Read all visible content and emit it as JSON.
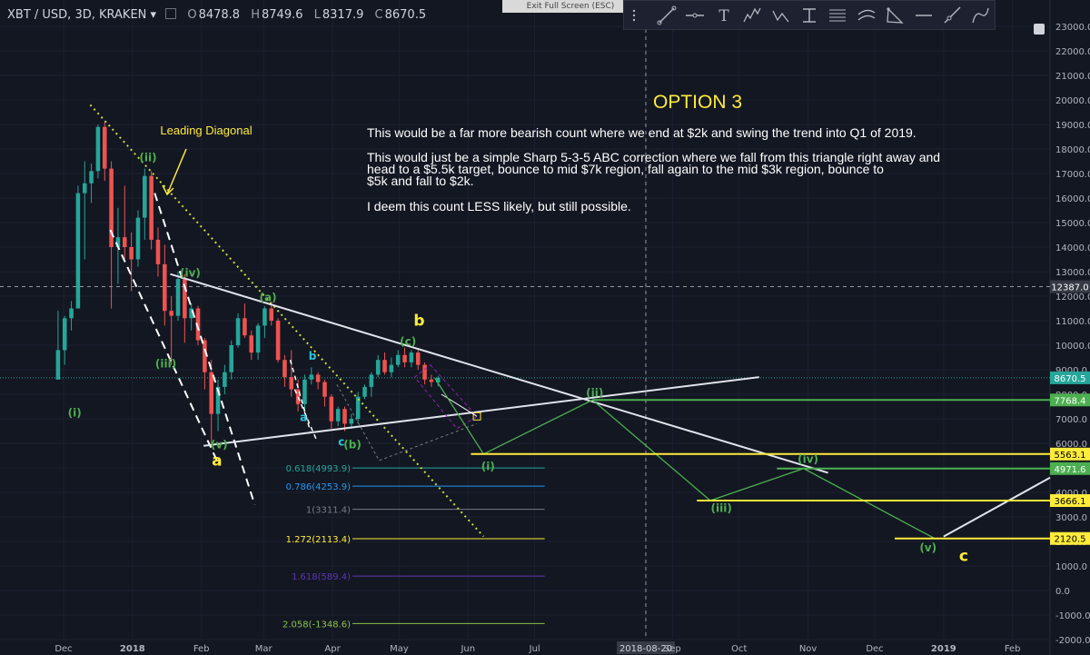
{
  "header": {
    "symbol": "XBT / USD, 3D, KRAKEN",
    "open_label": "O",
    "open": "8478.8",
    "high_label": "H",
    "high": "8749.6",
    "low_label": "L",
    "low": "8317.9",
    "close_label": "C",
    "close": "8670.5"
  },
  "exit_fullscreen": "Exit Full Screen (ESC)",
  "toolbar_icons": [
    "pointer-tool-icon",
    "trendline-icon",
    "horizontal-line-icon",
    "text-icon",
    "elliott-wave-12345-icon",
    "elliott-wave-abc-icon",
    "fib-retracement-icon",
    "fib-extension-icon",
    "channel-icon",
    "triangle-icon",
    "horizontal-segment-icon",
    "ray-icon",
    "path-icon"
  ],
  "annotation": {
    "title": "OPTION 3",
    "paragraph1": [
      "This would be a far more bearish count where we end at $2k and swing the trend into Q1 of 2019."
    ],
    "paragraph2": [
      "This would just be a simple Sharp 5-3-5 ABC correction where we fall from this triangle right away and",
      "head to a $5.5k target, bounce to mid $7k region, fall again to the mid $3k region, bounce to",
      "$5k and fall to $2k."
    ],
    "paragraph3": [
      "I deem this count LESS likely, but still possible."
    ]
  },
  "chart_data": {
    "type": "candlestick",
    "title": "XBT / USD, 3D, KRAKEN",
    "y_axis_ticks": [
      "23000.0",
      "22000.0",
      "21000.0",
      "20000.0",
      "19000.0",
      "18000.0",
      "17000.0",
      "16000.0",
      "15000.0",
      "14000.0",
      "13000.0",
      "12000.0",
      "11000.0",
      "10000.0",
      "9000.0",
      "8000.0",
      "7000.0",
      "6000.0",
      "5000.0",
      "4000.0",
      "3000.0",
      "2000.0",
      "1000.0",
      "0.0",
      "-1000.0",
      "-2000.0"
    ],
    "ylim": [
      -2000,
      23000
    ],
    "x_axis_ticks": [
      "Dec",
      "2018",
      "Feb",
      "Mar",
      "Apr",
      "May",
      "Jun",
      "Jul",
      "2018-08-20",
      "Sep",
      "Oct",
      "Nov",
      "Dec",
      "2019",
      "Feb"
    ],
    "crosshair_x_label": "2018-08-20",
    "crosshair_price": "12387.0",
    "price_labels": [
      {
        "text": "8670.5",
        "color": "#26a69a"
      },
      {
        "text": "7768.4",
        "color": "#4caf50"
      },
      {
        "text": "5563.1",
        "color": "#ffeb3b"
      },
      {
        "text": "4971.6",
        "color": "#4caf50"
      },
      {
        "text": "3666.1",
        "color": "#ffeb3b"
      },
      {
        "text": "2120.5",
        "color": "#ffeb3b"
      }
    ],
    "candles": [
      {
        "t": "2017-11-27",
        "o": 8600,
        "h": 11400,
        "l": 8600,
        "c": 9800
      },
      {
        "t": "2017-11-30",
        "o": 9800,
        "h": 11200,
        "l": 9200,
        "c": 11100
      },
      {
        "t": "2017-12-03",
        "o": 11100,
        "h": 11800,
        "l": 10600,
        "c": 11500
      },
      {
        "t": "2017-12-06",
        "o": 11500,
        "h": 16500,
        "l": 11500,
        "c": 16200
      },
      {
        "t": "2017-12-09",
        "o": 16200,
        "h": 17500,
        "l": 13500,
        "c": 16600
      },
      {
        "t": "2017-12-12",
        "o": 16600,
        "h": 17400,
        "l": 15800,
        "c": 17100
      },
      {
        "t": "2017-12-15",
        "o": 17100,
        "h": 19000,
        "l": 16800,
        "c": 18900
      },
      {
        "t": "2017-12-18",
        "o": 18900,
        "h": 19100,
        "l": 16700,
        "c": 17200
      },
      {
        "t": "2017-12-21",
        "o": 17200,
        "h": 17500,
        "l": 11500,
        "c": 14000
      },
      {
        "t": "2017-12-24",
        "o": 14000,
        "h": 15600,
        "l": 12500,
        "c": 14400
      },
      {
        "t": "2017-12-27",
        "o": 14400,
        "h": 16500,
        "l": 13500,
        "c": 14000
      },
      {
        "t": "2017-12-30",
        "o": 14000,
        "h": 14600,
        "l": 12200,
        "c": 13500
      },
      {
        "t": "2018-01-02",
        "o": 13500,
        "h": 15500,
        "l": 13200,
        "c": 15200
      },
      {
        "t": "2018-01-05",
        "o": 15200,
        "h": 17200,
        "l": 14300,
        "c": 16900
      },
      {
        "t": "2018-01-08",
        "o": 16900,
        "h": 17100,
        "l": 13900,
        "c": 14300
      },
      {
        "t": "2018-01-11",
        "o": 14300,
        "h": 14800,
        "l": 12800,
        "c": 13300
      },
      {
        "t": "2018-01-14",
        "o": 13300,
        "h": 14100,
        "l": 10800,
        "c": 11400
      },
      {
        "t": "2018-01-17",
        "o": 11400,
        "h": 12000,
        "l": 9200,
        "c": 11200
      },
      {
        "t": "2018-01-20",
        "o": 11200,
        "h": 13000,
        "l": 11000,
        "c": 12700
      },
      {
        "t": "2018-01-23",
        "o": 12700,
        "h": 12900,
        "l": 10100,
        "c": 11100
      },
      {
        "t": "2018-01-26",
        "o": 11100,
        "h": 11700,
        "l": 10600,
        "c": 11500
      },
      {
        "t": "2018-01-29",
        "o": 11500,
        "h": 11600,
        "l": 10000,
        "c": 10200
      },
      {
        "t": "2018-02-01",
        "o": 10200,
        "h": 10300,
        "l": 8200,
        "c": 8900
      },
      {
        "t": "2018-02-04",
        "o": 8900,
        "h": 9400,
        "l": 6000,
        "c": 7200
      },
      {
        "t": "2018-02-07",
        "o": 7200,
        "h": 8600,
        "l": 6500,
        "c": 8300
      },
      {
        "t": "2018-02-10",
        "o": 8300,
        "h": 9200,
        "l": 8000,
        "c": 8900
      },
      {
        "t": "2018-02-13",
        "o": 8900,
        "h": 10200,
        "l": 8600,
        "c": 10000
      },
      {
        "t": "2018-02-16",
        "o": 10000,
        "h": 11300,
        "l": 9900,
        "c": 11100
      },
      {
        "t": "2018-02-19",
        "o": 11100,
        "h": 11700,
        "l": 10300,
        "c": 10400
      },
      {
        "t": "2018-02-22",
        "o": 10400,
        "h": 10600,
        "l": 9400,
        "c": 9700
      },
      {
        "t": "2018-02-25",
        "o": 9700,
        "h": 10900,
        "l": 9400,
        "c": 10800
      },
      {
        "t": "2018-02-28",
        "o": 10800,
        "h": 11600,
        "l": 10300,
        "c": 11500
      },
      {
        "t": "2018-03-03",
        "o": 11500,
        "h": 11700,
        "l": 10800,
        "c": 11000
      },
      {
        "t": "2018-03-06",
        "o": 11000,
        "h": 11100,
        "l": 9300,
        "c": 9400
      },
      {
        "t": "2018-03-09",
        "o": 9400,
        "h": 9600,
        "l": 8300,
        "c": 8700
      },
      {
        "t": "2018-03-12",
        "o": 8700,
        "h": 9800,
        "l": 7900,
        "c": 8200
      },
      {
        "t": "2018-03-15",
        "o": 8200,
        "h": 8600,
        "l": 7300,
        "c": 7600
      },
      {
        "t": "2018-03-18",
        "o": 7600,
        "h": 8800,
        "l": 7300,
        "c": 8600
      },
      {
        "t": "2018-03-21",
        "o": 8600,
        "h": 9100,
        "l": 8400,
        "c": 8800
      },
      {
        "t": "2018-03-24",
        "o": 8800,
        "h": 8900,
        "l": 8200,
        "c": 8500
      },
      {
        "t": "2018-03-27",
        "o": 8500,
        "h": 8600,
        "l": 7500,
        "c": 7900
      },
      {
        "t": "2018-03-30",
        "o": 7900,
        "h": 8000,
        "l": 6600,
        "c": 6900
      },
      {
        "t": "2018-04-02",
        "o": 6900,
        "h": 7500,
        "l": 6700,
        "c": 7400
      },
      {
        "t": "2018-04-05",
        "o": 7400,
        "h": 7500,
        "l": 6500,
        "c": 6800
      },
      {
        "t": "2018-04-08",
        "o": 6800,
        "h": 7200,
        "l": 6600,
        "c": 7000
      },
      {
        "t": "2018-04-11",
        "o": 7000,
        "h": 8100,
        "l": 6800,
        "c": 7900
      },
      {
        "t": "2018-04-14",
        "o": 7900,
        "h": 8400,
        "l": 7800,
        "c": 8300
      },
      {
        "t": "2018-04-17",
        "o": 8300,
        "h": 8900,
        "l": 7900,
        "c": 8800
      },
      {
        "t": "2018-04-20",
        "o": 8800,
        "h": 9600,
        "l": 8700,
        "c": 9400
      },
      {
        "t": "2018-04-23",
        "o": 9400,
        "h": 9700,
        "l": 8800,
        "c": 8900
      },
      {
        "t": "2018-04-26",
        "o": 8900,
        "h": 9500,
        "l": 8700,
        "c": 9200
      },
      {
        "t": "2018-04-29",
        "o": 9200,
        "h": 9800,
        "l": 9100,
        "c": 9600
      },
      {
        "t": "2018-05-02",
        "o": 9600,
        "h": 9900,
        "l": 9100,
        "c": 9300
      },
      {
        "t": "2018-05-05",
        "o": 9300,
        "h": 9800,
        "l": 9100,
        "c": 9700
      },
      {
        "t": "2018-05-08",
        "o": 9700,
        "h": 9800,
        "l": 9000,
        "c": 9200
      },
      {
        "t": "2018-05-11",
        "o": 9200,
        "h": 9300,
        "l": 8400,
        "c": 8600
      },
      {
        "t": "2018-05-14",
        "o": 8600,
        "h": 8800,
        "l": 8300,
        "c": 8500
      },
      {
        "t": "2018-05-17",
        "o": 8478.8,
        "h": 8749.6,
        "l": 8317.9,
        "c": 8670.5
      }
    ],
    "fib_levels": [
      {
        "label": "0.618(4993.9)",
        "value": 4993.9,
        "color": "#26a69a"
      },
      {
        "label": "0.786(4253.9)",
        "value": 4253.9,
        "color": "#2196f3"
      },
      {
        "label": "1(3311.4)",
        "value": 3311.4,
        "color": "#787b86"
      },
      {
        "label": "1.272(2113.4)",
        "value": 2113.4,
        "color": "#ffeb3b"
      },
      {
        "label": "1.618(589.4)",
        "value": 589.4,
        "color": "#5e35b1"
      },
      {
        "label": "2.058(-1348.6)",
        "value": -1348.6,
        "color": "#8bc34a"
      }
    ],
    "wave_labels": [
      {
        "text": "(i)",
        "color": "#4caf50",
        "t": "2017-12-06",
        "y": 7100
      },
      {
        "text": "(ii)",
        "color": "#4caf50",
        "t": "2018-01-08",
        "y": 17500
      },
      {
        "text": "(iii)",
        "color": "#4caf50",
        "t": "2018-01-16",
        "y": 9100
      },
      {
        "text": "(iv)",
        "color": "#4caf50",
        "t": "2018-01-27",
        "y": 12800
      },
      {
        "text": "(v)",
        "color": "#4caf50",
        "t": "2018-02-09",
        "y": 5800
      },
      {
        "text": "a",
        "color": "#ffeb3b",
        "t": "2018-02-08",
        "y": 5100
      },
      {
        "text": "(a)",
        "color": "#4caf50",
        "t": "2018-03-03",
        "y": 11800
      },
      {
        "text": "a",
        "color": "#26c6da",
        "t": "2018-03-19",
        "y": 6900
      },
      {
        "text": "b",
        "color": "#26c6da",
        "t": "2018-03-23",
        "y": 9400
      },
      {
        "text": "c",
        "color": "#26c6da",
        "t": "2018-04-05",
        "y": 5900
      },
      {
        "text": "(b)",
        "color": "#4caf50",
        "t": "2018-04-10",
        "y": 5800
      },
      {
        "text": "(c)",
        "color": "#4caf50",
        "t": "2018-05-05",
        "y": 10000
      },
      {
        "text": "b",
        "color": "#ffeb3b",
        "t": "2018-05-10",
        "y": 10800
      },
      {
        "text": "(i)",
        "color": "#4caf50",
        "t": "2018-06-10",
        "y": 4900
      },
      {
        "text": "(ii)",
        "color": "#4caf50",
        "t": "2018-07-28",
        "y": 7900
      },
      {
        "text": "(iii)",
        "color": "#4caf50",
        "t": "2018-09-23",
        "y": 3200
      },
      {
        "text": "(iv)",
        "color": "#4caf50",
        "t": "2018-11-01",
        "y": 5200
      },
      {
        "text": "(v)",
        "color": "#4caf50",
        "t": "2018-12-25",
        "y": 1600
      },
      {
        "text": "c",
        "color": "#ffeb3b",
        "t": "2019-01-10",
        "y": 1200
      }
    ],
    "drawing_labels": [
      {
        "text": "Leading Diagonal",
        "color": "#ffeb3b"
      }
    ]
  }
}
